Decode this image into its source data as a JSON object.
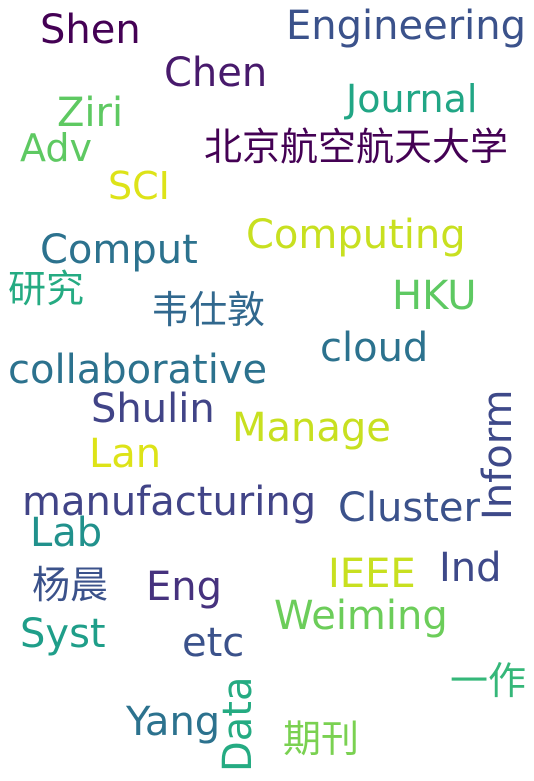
{
  "words": [
    {
      "text": "Shen",
      "color": "#440154"
    },
    {
      "text": "Engineering",
      "color": "#3b528b"
    },
    {
      "text": "Chen",
      "color": "#481a6c"
    },
    {
      "text": "Ziri",
      "color": "#5ec962"
    },
    {
      "text": "Journal",
      "color": "#21a685"
    },
    {
      "text": "Adv",
      "color": "#5ec962"
    },
    {
      "text": "北京航空航天大学",
      "color": "#440154"
    },
    {
      "text": "SCI",
      "color": "#dde318"
    },
    {
      "text": "Comput",
      "color": "#2c728e"
    },
    {
      "text": "Computing",
      "color": "#c8e020"
    },
    {
      "text": "研究",
      "color": "#25ab82"
    },
    {
      "text": "韦仕敦",
      "color": "#31688e"
    },
    {
      "text": "HKU",
      "color": "#5ec962"
    },
    {
      "text": "cloud",
      "color": "#2c728e"
    },
    {
      "text": "collaborative",
      "color": "#2c728e"
    },
    {
      "text": "Shulin",
      "color": "#414487"
    },
    {
      "text": "Manage",
      "color": "#c8e020"
    },
    {
      "text": "Lan",
      "color": "#dde318"
    },
    {
      "text": "Inform",
      "color": "#3e4989"
    },
    {
      "text": "manufacturing",
      "color": "#414487"
    },
    {
      "text": "Cluster",
      "color": "#3b528b"
    },
    {
      "text": "Lab",
      "color": "#21918c"
    },
    {
      "text": "IEEE",
      "color": "#c8e020"
    },
    {
      "text": "Ind",
      "color": "#3e4989"
    },
    {
      "text": "杨晨",
      "color": "#3b528b"
    },
    {
      "text": "Eng",
      "color": "#46327e"
    },
    {
      "text": "Weiming",
      "color": "#6ccd5a"
    },
    {
      "text": "Syst",
      "color": "#1f9e89"
    },
    {
      "text": "etc",
      "color": "#3b528b"
    },
    {
      "text": "一作",
      "color": "#35b779"
    },
    {
      "text": "Yang",
      "color": "#2c728e"
    },
    {
      "text": "Data",
      "color": "#25ab82"
    },
    {
      "text": "期刊",
      "color": "#7ad151"
    }
  ]
}
